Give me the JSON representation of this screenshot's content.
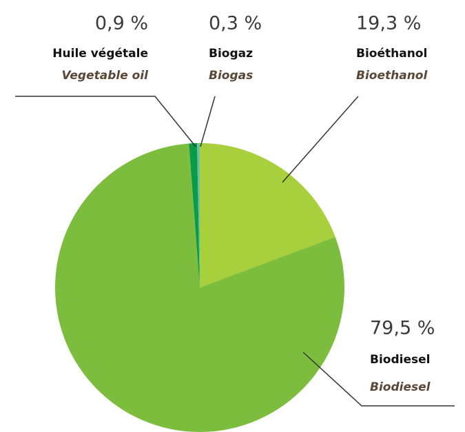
{
  "chart_data": {
    "type": "pie",
    "categories": [
      "Bioéthanol",
      "Biodiesel",
      "Huile végétale",
      "Biogaz"
    ],
    "categories_en": [
      "Bioethanol",
      "Biodiesel",
      "Vegetable oil",
      "Biogas"
    ],
    "values": [
      19.3,
      79.5,
      0.9,
      0.3
    ],
    "value_labels": [
      "19,3 %",
      "79,5 %",
      "0,9 %",
      "0,3 %"
    ],
    "colors": [
      "#a8cf3c",
      "#7dbd3d",
      "#0a9a4a",
      "#62c3a3"
    ]
  }
}
